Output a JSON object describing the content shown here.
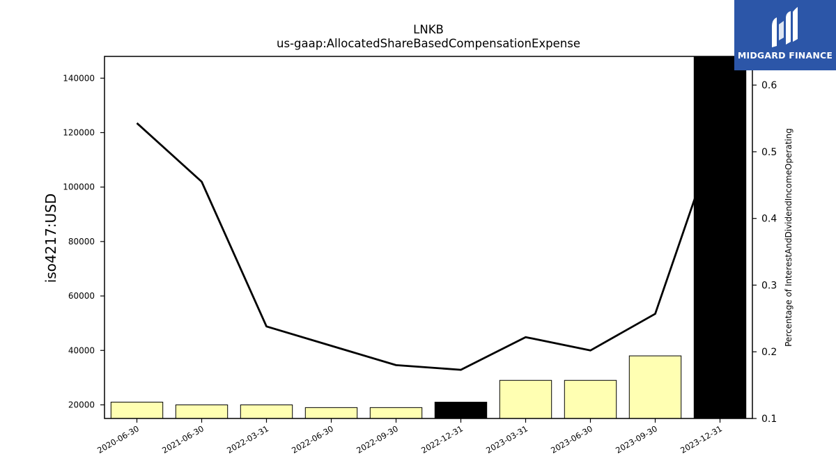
{
  "chart_data": {
    "type": "bar",
    "title": "LNKB",
    "subtitle": "us-gaap:AllocatedShareBasedCompensationExpense",
    "ylabel": "iso4217:USD",
    "y2label": "Percentage of InterestAndDividendIncomeOperating",
    "categories": [
      "2020-06-30",
      "2021-06-30",
      "2022-03-31",
      "2022-06-30",
      "2022-09-30",
      "2022-12-31",
      "2023-03-31",
      "2023-06-30",
      "2023-09-30",
      "2023-12-31"
    ],
    "series": [
      {
        "type": "bar",
        "axis": "left",
        "values": [
          21000,
          20000,
          20000,
          19000,
          19000,
          21000,
          29000,
          29000,
          38000,
          148000
        ],
        "highlight": [
          false,
          false,
          false,
          false,
          false,
          true,
          false,
          false,
          false,
          true
        ]
      },
      {
        "type": "line",
        "axis": "right",
        "values": [
          0.543,
          0.455,
          0.238,
          0.209,
          0.18,
          0.173,
          0.222,
          0.202,
          0.257,
          0.54
        ]
      }
    ],
    "ylim": [
      15000,
      148000
    ],
    "yticks": [
      20000,
      40000,
      60000,
      80000,
      100000,
      120000,
      140000
    ],
    "y2lim": [
      0.1,
      0.643
    ],
    "y2ticks": [
      "0.1",
      "0.2",
      "0.3",
      "0.4",
      "0.5",
      "0.6"
    ],
    "grid": false,
    "colors": {
      "bar": "#ffffb2",
      "bar_highlight": "#000000",
      "line": "#000000"
    }
  },
  "logo": {
    "text": "MIDGARD FINANCE",
    "color": "#2c56a8"
  }
}
